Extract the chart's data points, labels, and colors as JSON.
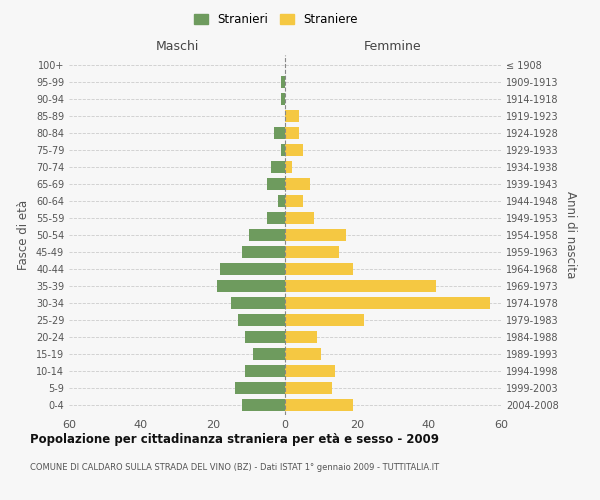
{
  "age_groups": [
    "0-4",
    "5-9",
    "10-14",
    "15-19",
    "20-24",
    "25-29",
    "30-34",
    "35-39",
    "40-44",
    "45-49",
    "50-54",
    "55-59",
    "60-64",
    "65-69",
    "70-74",
    "75-79",
    "80-84",
    "85-89",
    "90-94",
    "95-99",
    "100+"
  ],
  "birth_years": [
    "2004-2008",
    "1999-2003",
    "1994-1998",
    "1989-1993",
    "1984-1988",
    "1979-1983",
    "1974-1978",
    "1969-1973",
    "1964-1968",
    "1959-1963",
    "1954-1958",
    "1949-1953",
    "1944-1948",
    "1939-1943",
    "1934-1938",
    "1929-1933",
    "1924-1928",
    "1919-1923",
    "1914-1918",
    "1909-1913",
    "≤ 1908"
  ],
  "maschi": [
    12,
    14,
    11,
    9,
    11,
    13,
    15,
    19,
    18,
    12,
    10,
    5,
    2,
    5,
    4,
    1,
    3,
    0,
    1,
    1,
    0
  ],
  "femmine": [
    19,
    13,
    14,
    10,
    9,
    22,
    57,
    42,
    19,
    15,
    17,
    8,
    5,
    7,
    2,
    5,
    4,
    4,
    0,
    0,
    0
  ],
  "maschi_color": "#6e9b5e",
  "femmine_color": "#f5c842",
  "background_color": "#f7f7f7",
  "grid_color": "#cccccc",
  "title": "Popolazione per cittadinanza straniera per età e sesso - 2009",
  "subtitle": "COMUNE DI CALDARO SULLA STRADA DEL VINO (BZ) - Dati ISTAT 1° gennaio 2009 - TUTTITALIA.IT",
  "xlabel_left": "Maschi",
  "xlabel_right": "Femmine",
  "ylabel_left": "Fasce di età",
  "ylabel_right": "Anni di nascita",
  "xlim": 60,
  "legend_stranieri": "Stranieri",
  "legend_straniere": "Straniere"
}
